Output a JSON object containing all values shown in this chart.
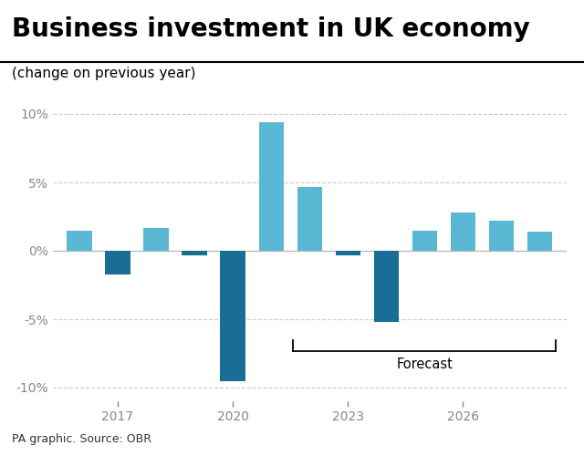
{
  "title": "Business investment in UK economy",
  "subtitle": "(change on previous year)",
  "source": "PA graphic. Source: OBR",
  "years": [
    2016,
    2017,
    2018,
    2019,
    2020,
    2021,
    2022,
    2023,
    2024,
    2025,
    2026,
    2027,
    2028
  ],
  "values": [
    1.5,
    -1.7,
    1.7,
    -0.3,
    -9.5,
    9.4,
    4.7,
    -0.3,
    -5.2,
    1.5,
    2.8,
    2.2,
    1.4
  ],
  "light_blue": "#5BB8D4",
  "dark_blue": "#1A6E96",
  "background": "#FFFFFF",
  "forecast_start_year": 2022,
  "ylim": [
    -11,
    11
  ],
  "yticks": [
    -10,
    -5,
    0,
    5,
    10
  ],
  "xtick_years": [
    2017,
    2020,
    2023,
    2026
  ],
  "grid_color": "#CCCCCC",
  "axis_label_color": "#888888",
  "title_fontsize": 20,
  "subtitle_fontsize": 11,
  "source_fontsize": 9,
  "bar_width": 0.65
}
